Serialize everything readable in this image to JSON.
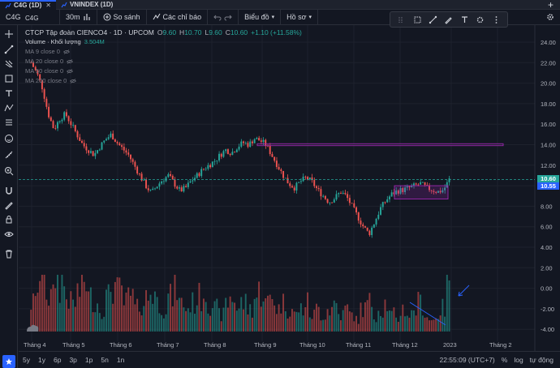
{
  "tabs": [
    {
      "label": "C4G (1D)",
      "active": true
    },
    {
      "label": "VNINDEX (1D)",
      "active": false
    }
  ],
  "toolbar": {
    "symbol": "C4G",
    "interval": "30m",
    "compare": "So sánh",
    "indicators": "Các chỉ báo",
    "chart_type": "Biểu đồ",
    "profile": "Hồ sơ"
  },
  "legend": {
    "title": "CTCP Tập đoàn CIENCO4 · 1D · UPCOM",
    "o_label": "O",
    "o_value": "9.60",
    "h_label": "H",
    "h_value": "10.70",
    "l_label": "L",
    "l_value": "9.60",
    "c_label": "C",
    "c_value": "10.60",
    "change": "+1.10 (+11.58%)",
    "volume_label": "Volume · Khối lượng",
    "volume_value": "3.504M",
    "ma": [
      "MA 9 close 0",
      "MA 20 close 0",
      "MA 50 close 0",
      "MA 200 close 0"
    ]
  },
  "price_tags": {
    "close": "10.60",
    "last": "10.55"
  },
  "bottom": {
    "ranges": [
      "5y",
      "1y",
      "6p",
      "3p",
      "1p",
      "5n",
      "1n"
    ],
    "clock": "22:55:09 (UTC+7)",
    "percent": "%",
    "log": "log",
    "auto": "tự động"
  },
  "colors": {
    "up": "#26a69a",
    "down": "#ef5350",
    "accent": "#2962ff",
    "box": "#9c27b0"
  },
  "chart_data": {
    "type": "candlestick",
    "y_ticks": [
      "24.00",
      "22.00",
      "20.00",
      "18.00",
      "16.00",
      "14.00",
      "12.00",
      "10.00",
      "8.00",
      "6.00",
      "4.00",
      "2.00",
      "0.00",
      "-2.00",
      "-4.00"
    ],
    "x_ticks": [
      "Tháng 4",
      "Tháng 5",
      "Tháng 6",
      "Tháng 7",
      "Tháng 8",
      "Tháng 9",
      "Tháng 10",
      "Tháng 11",
      "Tháng 12",
      "2023",
      "Tháng 2"
    ],
    "ylim": [
      -5.2,
      25
    ],
    "close_series": [
      22.0,
      21.0,
      19.5,
      17.0,
      15.5,
      16.5,
      17.0,
      16.0,
      15.0,
      14.0,
      13.5,
      13.0,
      13.8,
      14.5,
      15.0,
      14.2,
      13.6,
      13.0,
      12.0,
      11.0,
      10.0,
      9.3,
      10.0,
      10.6,
      11.0,
      10.2,
      9.5,
      9.8,
      10.5,
      11.0,
      11.6,
      12.0,
      12.4,
      13.0,
      13.5,
      13.2,
      13.8,
      14.2,
      14.0,
      14.6,
      14.4,
      14.0,
      13.0,
      12.0,
      11.0,
      10.2,
      9.8,
      10.4,
      10.8,
      10.4,
      9.6,
      9.0,
      8.4,
      8.8,
      9.4,
      9.0,
      8.0,
      7.0,
      6.0,
      5.3,
      6.5,
      7.8,
      8.6,
      9.2,
      9.5,
      9.6,
      9.8,
      10.0,
      10.2,
      9.8,
      9.6,
      9.4,
      9.6,
      10.6
    ],
    "volume_series": [
      0.5,
      0.9,
      0.7,
      0.6,
      1.0,
      0.8,
      0.6,
      0.5,
      0.7,
      0.9,
      0.6,
      0.5,
      0.4,
      0.6,
      0.8,
      0.7,
      0.5,
      0.6,
      0.4,
      0.5,
      0.6,
      0.7,
      0.5,
      0.4,
      0.6,
      0.8,
      0.5,
      0.4,
      0.5,
      0.6,
      0.7,
      0.5,
      0.4,
      0.3,
      0.5,
      0.6,
      0.4,
      0.5,
      0.4,
      0.6,
      0.7,
      0.5,
      0.6,
      0.4,
      0.5,
      0.4,
      0.3,
      0.4,
      0.5,
      0.3,
      0.4,
      0.3,
      0.4,
      0.5,
      0.3,
      0.4,
      0.3,
      0.2,
      0.4,
      0.5,
      0.3,
      0.4,
      0.5,
      0.3,
      0.2,
      0.4,
      0.3,
      0.4,
      0.5,
      0.3,
      0.2,
      0.3,
      0.4,
      0.9
    ]
  }
}
